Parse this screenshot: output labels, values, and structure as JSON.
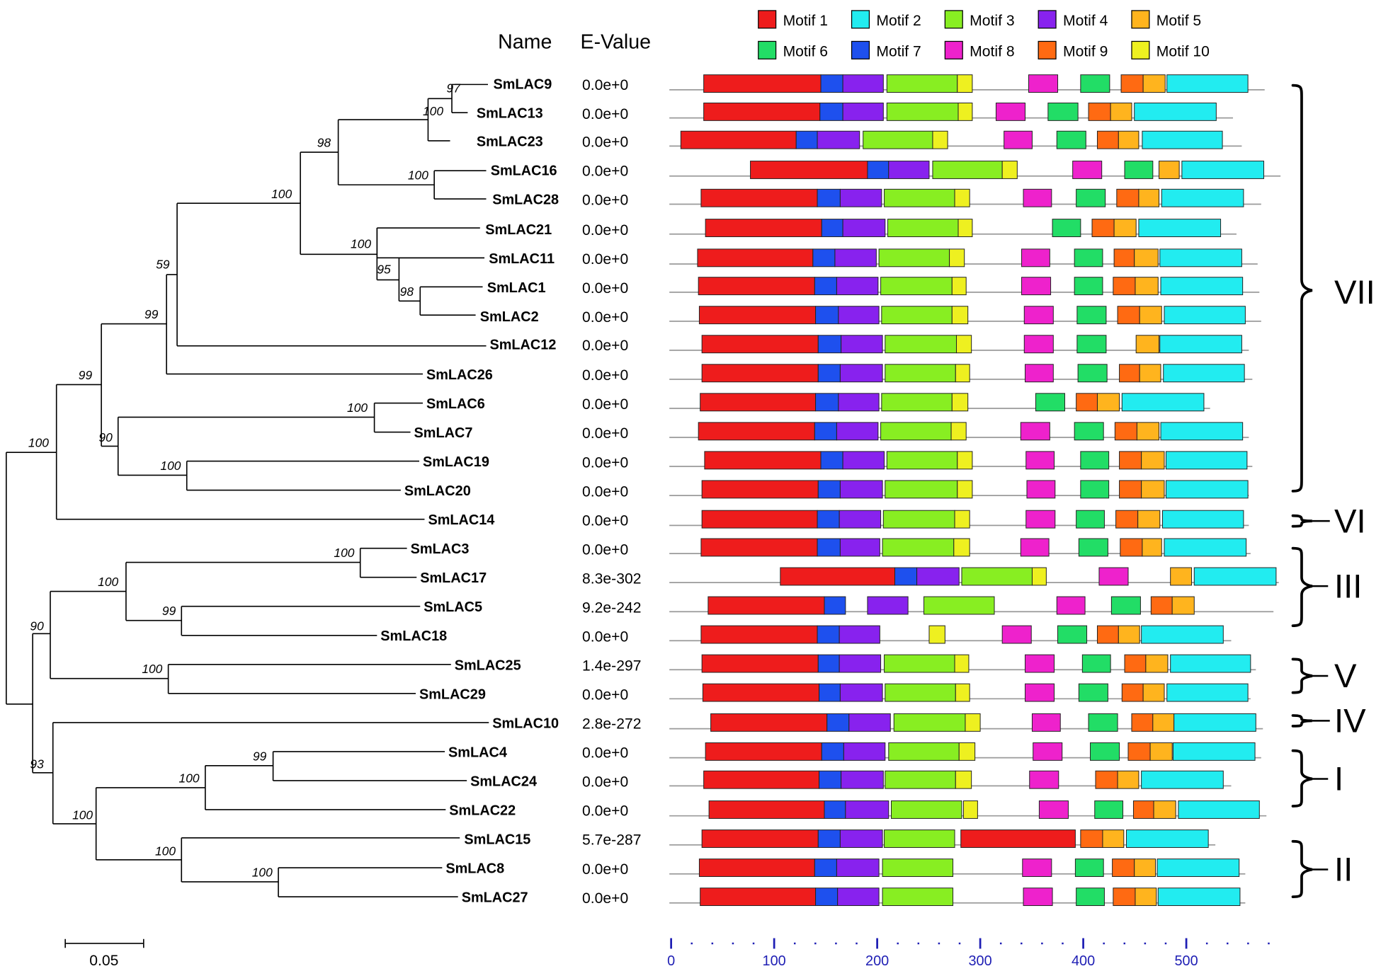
{
  "headers": {
    "name": "Name",
    "evalue": "E-Value"
  },
  "legend": [
    {
      "motif": 1,
      "label": "Motif 1",
      "color": "#ee1c1c"
    },
    {
      "motif": 2,
      "label": "Motif 2",
      "color": "#22ecf0"
    },
    {
      "motif": 3,
      "label": "Motif 3",
      "color": "#88ee22"
    },
    {
      "motif": 4,
      "label": "Motif 4",
      "color": "#8822ee"
    },
    {
      "motif": 5,
      "label": "Motif 5",
      "color": "#ffb41e"
    },
    {
      "motif": 6,
      "label": "Motif 6",
      "color": "#22dd66"
    },
    {
      "motif": 7,
      "label": "Motif 7",
      "color": "#1e50ee"
    },
    {
      "motif": 8,
      "label": "Motif 8",
      "color": "#ee22cc"
    },
    {
      "motif": 9,
      "label": "Motif 9",
      "color": "#ff6a12"
    },
    {
      "motif": 10,
      "label": "Motif 10",
      "color": "#eef020"
    }
  ],
  "genes": [
    {
      "name": "SmLAC9",
      "evalue": "0.0e+0"
    },
    {
      "name": "SmLAC13",
      "evalue": "0.0e+0"
    },
    {
      "name": "SmLAC23",
      "evalue": "0.0e+0"
    },
    {
      "name": "SmLAC16",
      "evalue": "0.0e+0"
    },
    {
      "name": "SmLAC28",
      "evalue": "0.0e+0"
    },
    {
      "name": "SmLAC21",
      "evalue": "0.0e+0"
    },
    {
      "name": "SmLAC11",
      "evalue": "0.0e+0"
    },
    {
      "name": "SmLAC1",
      "evalue": "0.0e+0"
    },
    {
      "name": "SmLAC2",
      "evalue": "0.0e+0"
    },
    {
      "name": "SmLAC12",
      "evalue": "0.0e+0"
    },
    {
      "name": "SmLAC26",
      "evalue": "0.0e+0"
    },
    {
      "name": "SmLAC6",
      "evalue": "0.0e+0"
    },
    {
      "name": "SmLAC7",
      "evalue": "0.0e+0"
    },
    {
      "name": "SmLAC19",
      "evalue": "0.0e+0"
    },
    {
      "name": "SmLAC20",
      "evalue": "0.0e+0"
    },
    {
      "name": "SmLAC14",
      "evalue": "0.0e+0"
    },
    {
      "name": "SmLAC3",
      "evalue": "0.0e+0"
    },
    {
      "name": "SmLAC17",
      "evalue": "8.3e-302"
    },
    {
      "name": "SmLAC5",
      "evalue": "9.2e-242"
    },
    {
      "name": "SmLAC18",
      "evalue": "0.0e+0"
    },
    {
      "name": "SmLAC25",
      "evalue": "1.4e-297"
    },
    {
      "name": "SmLAC29",
      "evalue": "0.0e+0"
    },
    {
      "name": "SmLAC10",
      "evalue": "2.8e-272"
    },
    {
      "name": "SmLAC4",
      "evalue": "0.0e+0"
    },
    {
      "name": "SmLAC24",
      "evalue": "0.0e+0"
    },
    {
      "name": "SmLAC22",
      "evalue": "0.0e+0"
    },
    {
      "name": "SmLAC15",
      "evalue": "5.7e-287"
    },
    {
      "name": "SmLAC8",
      "evalue": "0.0e+0"
    },
    {
      "name": "SmLAC27",
      "evalue": "0.0e+0"
    }
  ],
  "bootstrap_values": [
    "97",
    "100",
    "98",
    "100",
    "100",
    "100",
    "95",
    "98",
    "59",
    "99",
    "99",
    "100",
    "90",
    "100",
    "100",
    "100",
    "100",
    "99",
    "90",
    "100",
    "99",
    "100",
    "93",
    "100",
    "100",
    "100"
  ],
  "groups": [
    {
      "label": "VII"
    },
    {
      "label": "VI"
    },
    {
      "label": "III"
    },
    {
      "label": "V"
    },
    {
      "label": "IV"
    },
    {
      "label": "I"
    },
    {
      "label": "II"
    }
  ],
  "axis": {
    "ticks": [
      "0",
      "100",
      "200",
      "300",
      "400",
      "500"
    ]
  },
  "scale_bar": {
    "label": "0.05"
  }
}
